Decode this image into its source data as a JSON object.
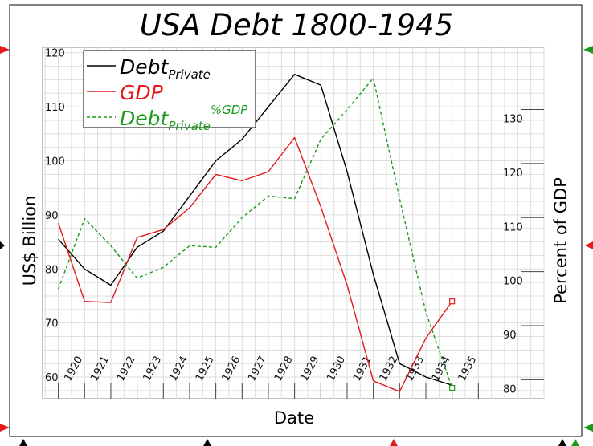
{
  "chart_data": {
    "type": "line",
    "title": "USA Debt 1800-1945",
    "xlabel": "Date",
    "ylabel_left": "US$ Billion",
    "ylabel_right": "Percent of GDP",
    "x": [
      1919,
      1920,
      1921,
      1922,
      1923,
      1924,
      1925,
      1926,
      1927,
      1928,
      1929,
      1930,
      1931,
      1932,
      1933,
      1934
    ],
    "x_tick_labels": [
      "1920",
      "1921",
      "1922",
      "1923",
      "1924",
      "1925",
      "1926",
      "1927",
      "1928",
      "1929",
      "1930",
      "1931",
      "1932",
      "1933",
      "1934",
      "1935"
    ],
    "x_tick_values": [
      1920,
      1921,
      1922,
      1923,
      1924,
      1925,
      1926,
      1927,
      1928,
      1929,
      1930,
      1931,
      1932,
      1933,
      1934,
      1935
    ],
    "xlim": [
      1918.4,
      1937.5
    ],
    "y_left_range": [
      56,
      121
    ],
    "y_left_ticks": [
      "120",
      "110",
      "100",
      "90",
      "80",
      "70",
      "60"
    ],
    "y_left_tick_values": [
      120,
      110,
      100,
      90,
      80,
      70,
      60
    ],
    "y_right_range": [
      76.5,
      141.5
    ],
    "y_right_ticks": [
      "130",
      "120",
      "110",
      "100",
      "90",
      "80"
    ],
    "y_right_tick_values": [
      130,
      120,
      110,
      100,
      90,
      80
    ],
    "grid": true,
    "legend_placement": "top-left",
    "series": [
      {
        "legend_main": "Debt",
        "legend_sub": "Private",
        "legend_sup": "",
        "axis": "left",
        "color": "#000000",
        "dash": "",
        "values": [
          85.5,
          80,
          77,
          84,
          87,
          93.5,
          100,
          104,
          110,
          116,
          114,
          98,
          79,
          62.5,
          60,
          58.5
        ]
      },
      {
        "legend_main": "GDP",
        "legend_sub": "",
        "legend_sup": "",
        "axis": "left",
        "color": "#e31a1c",
        "dash": "",
        "values": [
          88.5,
          74,
          73.8,
          85.8,
          87.3,
          91.3,
          97.5,
          96.3,
          98,
          104.3,
          91.5,
          77,
          59.3,
          57.3,
          67.2,
          74
        ]
      },
      {
        "legend_main": "Debt",
        "legend_sub": "Private",
        "legend_sup": "%GDP",
        "axis": "right",
        "color": "#1a9a1a",
        "dash": "4,3",
        "values": [
          96.8,
          109.8,
          104.8,
          98.8,
          100.8,
          104.8,
          104.5,
          110,
          114,
          113.5,
          124.5,
          130,
          135.8,
          113.5,
          92.5,
          78.5
        ]
      }
    ]
  }
}
